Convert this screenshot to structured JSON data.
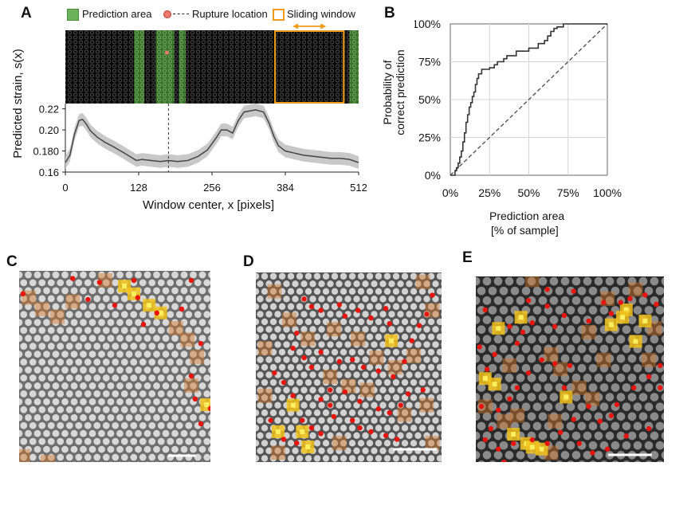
{
  "panels": {
    "a": "A",
    "b": "B",
    "c": "C",
    "d": "D",
    "e": "E"
  },
  "legend": {
    "prediction_area": "Prediction area",
    "rupture_location": "Rupture location",
    "sliding_window": "Sliding window"
  },
  "colors": {
    "prediction_green": "#5ca14a",
    "rupture_red": "#e8564f",
    "window_orange": "#f29a1a",
    "curve": "#444444",
    "band": "#c8c8c8"
  },
  "chart_data": [
    {
      "type": "line",
      "title": "",
      "xlabel": "Window center, x [pixels]",
      "ylabel": "Predicted strain, s(x)",
      "xlim": [
        0,
        512
      ],
      "ylim": [
        0.16,
        0.225
      ],
      "xticks": [
        "0",
        "128",
        "256",
        "384",
        "512"
      ],
      "xtick_values": [
        0,
        128,
        256,
        384,
        512
      ],
      "yticks": [
        "0.16",
        "0.180",
        "0.20",
        "0.22"
      ],
      "ytick_values": [
        0.16,
        0.18,
        0.2,
        0.22
      ],
      "rupture_x": 180,
      "prediction_areas": [
        [
          120,
          138
        ],
        [
          158,
          190
        ],
        [
          198,
          210
        ],
        [
          496,
          512
        ]
      ],
      "sliding_window": [
        366,
        486
      ],
      "series": [
        {
          "name": "mean",
          "x": [
            0,
            8,
            16,
            24,
            30,
            36,
            44,
            56,
            70,
            84,
            100,
            112,
            124,
            134,
            150,
            166,
            180,
            196,
            214,
            232,
            248,
            256,
            264,
            272,
            282,
            292,
            302,
            312,
            322,
            332,
            346,
            356,
            364,
            372,
            384,
            400,
            416,
            432,
            448,
            464,
            480,
            496,
            512
          ],
          "values": [
            0.169,
            0.176,
            0.196,
            0.209,
            0.21,
            0.206,
            0.199,
            0.193,
            0.188,
            0.184,
            0.179,
            0.175,
            0.171,
            0.172,
            0.171,
            0.17,
            0.171,
            0.17,
            0.171,
            0.175,
            0.181,
            0.187,
            0.193,
            0.2,
            0.2,
            0.197,
            0.209,
            0.217,
            0.218,
            0.219,
            0.217,
            0.206,
            0.194,
            0.185,
            0.18,
            0.178,
            0.176,
            0.175,
            0.174,
            0.173,
            0.173,
            0.172,
            0.169
          ],
          "band": 0.006
        }
      ]
    },
    {
      "type": "line",
      "title": "",
      "xlabel": "Prediction area\n[% of sample]",
      "xlabel_lines": [
        "Prediction area",
        "[% of sample]"
      ],
      "ylabel": "Probability of correct prediction",
      "ylabel_lines": [
        "Probability of",
        "correct prediction"
      ],
      "xlim": [
        0,
        100
      ],
      "ylim": [
        0,
        100
      ],
      "xticks": [
        "0%",
        "25%",
        "50%",
        "75%",
        "100%"
      ],
      "xtick_values": [
        0,
        25,
        50,
        75,
        100
      ],
      "yticks": [
        "0%",
        "25%",
        "50%",
        "75%",
        "100%"
      ],
      "ytick_values": [
        0,
        25,
        50,
        75,
        100
      ],
      "series": [
        {
          "name": "model",
          "step": true,
          "x": [
            0,
            3,
            4,
            5,
            6,
            7,
            8,
            9,
            10,
            11,
            12,
            13,
            14,
            15,
            16,
            17,
            18,
            20,
            25,
            28,
            30,
            34,
            36,
            42,
            50,
            56,
            60,
            62,
            64,
            66,
            68,
            72,
            100
          ],
          "values": [
            0,
            3,
            5,
            8,
            12,
            16,
            22,
            28,
            35,
            40,
            45,
            48,
            52,
            55,
            60,
            64,
            67,
            70,
            71,
            73,
            75,
            77,
            79,
            82,
            84,
            87,
            89,
            92,
            95,
            97,
            98,
            100,
            100
          ]
        },
        {
          "name": "random",
          "dashed": true,
          "x": [
            0,
            100
          ],
          "values": [
            0,
            100
          ]
        }
      ]
    }
  ],
  "micrographs": {
    "c": {
      "red_dots": [
        [
          0.02,
          0.12
        ],
        [
          0.28,
          0.04
        ],
        [
          0.42,
          0.06
        ],
        [
          0.36,
          0.15
        ],
        [
          0.5,
          0.18
        ],
        [
          0.62,
          0.14
        ],
        [
          0.72,
          0.22
        ],
        [
          0.85,
          0.2
        ],
        [
          0.9,
          0.05
        ],
        [
          0.95,
          0.38
        ],
        [
          0.9,
          0.55
        ],
        [
          0.92,
          0.67
        ],
        [
          0.95,
          0.8
        ],
        [
          1.0,
          0.72
        ],
        [
          0.6,
          0.05
        ],
        [
          0.65,
          0.28
        ]
      ],
      "yellow": [
        [
          0.6,
          0.12
        ],
        [
          0.68,
          0.18
        ],
        [
          0.74,
          0.22
        ],
        [
          0.98,
          0.7
        ],
        [
          0.55,
          0.08
        ]
      ],
      "orange": [
        [
          0.05,
          0.14
        ],
        [
          0.12,
          0.2
        ],
        [
          0.2,
          0.24
        ],
        [
          0.28,
          0.16
        ],
        [
          0.82,
          0.3
        ],
        [
          0.88,
          0.36
        ],
        [
          0.93,
          0.45
        ],
        [
          0.9,
          0.6
        ],
        [
          0.45,
          0.05
        ],
        [
          0.02,
          0.97
        ],
        [
          0.15,
          1.0
        ]
      ]
    },
    "d": {
      "red_dots": [
        [
          0.26,
          0.14
        ],
        [
          0.3,
          0.18
        ],
        [
          0.35,
          0.2
        ],
        [
          0.45,
          0.17
        ],
        [
          0.48,
          0.23
        ],
        [
          0.55,
          0.2
        ],
        [
          0.62,
          0.24
        ],
        [
          0.7,
          0.19
        ],
        [
          0.72,
          0.27
        ],
        [
          0.22,
          0.32
        ],
        [
          0.2,
          0.4
        ],
        [
          0.26,
          0.45
        ],
        [
          0.3,
          0.5
        ],
        [
          0.35,
          0.42
        ],
        [
          0.45,
          0.47
        ],
        [
          0.52,
          0.46
        ],
        [
          0.58,
          0.5
        ],
        [
          0.66,
          0.52
        ],
        [
          0.74,
          0.55
        ],
        [
          0.8,
          0.47
        ],
        [
          0.84,
          0.36
        ],
        [
          0.88,
          0.28
        ],
        [
          0.92,
          0.22
        ],
        [
          0.1,
          0.53
        ],
        [
          0.15,
          0.58
        ],
        [
          0.2,
          0.65
        ],
        [
          0.35,
          0.67
        ],
        [
          0.4,
          0.62
        ],
        [
          0.48,
          0.63
        ],
        [
          0.56,
          0.68
        ],
        [
          0.66,
          0.72
        ],
        [
          0.72,
          0.74
        ],
        [
          0.78,
          0.7
        ],
        [
          0.82,
          0.64
        ],
        [
          0.9,
          0.62
        ],
        [
          0.95,
          0.12
        ],
        [
          0.08,
          0.78
        ],
        [
          0.25,
          0.78
        ],
        [
          0.3,
          0.82
        ],
        [
          0.35,
          0.85
        ],
        [
          0.4,
          0.7
        ],
        [
          0.42,
          0.76
        ],
        [
          0.52,
          0.78
        ],
        [
          0.56,
          0.82
        ],
        [
          0.62,
          0.84
        ],
        [
          0.7,
          0.86
        ],
        [
          0.76,
          0.88
        ],
        [
          0.15,
          0.88
        ],
        [
          0.22,
          0.9
        ]
      ],
      "yellow": [
        [
          0.2,
          0.7
        ],
        [
          0.12,
          0.84
        ],
        [
          0.25,
          0.84
        ],
        [
          0.73,
          0.36
        ],
        [
          0.28,
          0.92
        ]
      ],
      "orange": [
        [
          0.1,
          0.1
        ],
        [
          0.18,
          0.25
        ],
        [
          0.28,
          0.35
        ],
        [
          0.42,
          0.3
        ],
        [
          0.55,
          0.35
        ],
        [
          0.65,
          0.45
        ],
        [
          0.75,
          0.5
        ],
        [
          0.85,
          0.44
        ],
        [
          0.95,
          0.2
        ],
        [
          0.4,
          0.55
        ],
        [
          0.5,
          0.6
        ],
        [
          0.6,
          0.62
        ],
        [
          0.8,
          0.75
        ],
        [
          0.92,
          0.7
        ],
        [
          0.05,
          0.65
        ],
        [
          0.12,
          0.95
        ],
        [
          0.45,
          0.9
        ],
        [
          0.95,
          0.9
        ],
        [
          0.9,
          0.05
        ],
        [
          0.05,
          0.4
        ]
      ]
    },
    "e": {
      "red_dots": [
        [
          0.02,
          0.38
        ],
        [
          0.06,
          0.5
        ],
        [
          0.1,
          0.42
        ],
        [
          0.18,
          0.27
        ],
        [
          0.25,
          0.3
        ],
        [
          0.3,
          0.25
        ],
        [
          0.28,
          0.13
        ],
        [
          0.38,
          0.16
        ],
        [
          0.42,
          0.27
        ],
        [
          0.47,
          0.21
        ],
        [
          0.52,
          0.08
        ],
        [
          0.6,
          0.24
        ],
        [
          0.68,
          0.14
        ],
        [
          0.72,
          0.2
        ],
        [
          0.77,
          0.14
        ],
        [
          0.82,
          0.12
        ],
        [
          0.9,
          0.1
        ],
        [
          0.96,
          0.15
        ],
        [
          0.98,
          0.48
        ],
        [
          0.92,
          0.54
        ],
        [
          0.84,
          0.6
        ],
        [
          0.75,
          0.69
        ],
        [
          0.72,
          0.75
        ],
        [
          0.6,
          0.7
        ],
        [
          0.52,
          0.77
        ],
        [
          0.47,
          0.6
        ],
        [
          0.42,
          0.47
        ],
        [
          0.35,
          0.45
        ],
        [
          0.28,
          0.52
        ],
        [
          0.22,
          0.6
        ],
        [
          0.18,
          0.66
        ],
        [
          0.12,
          0.72
        ],
        [
          0.08,
          0.82
        ],
        [
          0.05,
          0.88
        ],
        [
          0.12,
          0.93
        ],
        [
          0.2,
          0.9
        ],
        [
          0.3,
          0.88
        ],
        [
          0.38,
          0.9
        ],
        [
          0.45,
          0.84
        ],
        [
          0.55,
          0.9
        ],
        [
          0.62,
          0.95
        ],
        [
          0.7,
          0.93
        ],
        [
          0.8,
          0.86
        ],
        [
          0.92,
          0.82
        ],
        [
          0.98,
          0.6
        ],
        [
          0.15,
          1.0
        ],
        [
          0.03,
          0.7
        ],
        [
          0.38,
          0.07
        ],
        [
          0.05,
          0.18
        ],
        [
          0.22,
          0.36
        ],
        [
          0.5,
          0.48
        ],
        [
          0.66,
          0.78
        ]
      ],
      "yellow": [
        [
          0.8,
          0.18
        ],
        [
          0.78,
          0.22
        ],
        [
          0.72,
          0.26
        ],
        [
          0.85,
          0.35
        ],
        [
          0.1,
          0.58
        ],
        [
          0.2,
          0.85
        ],
        [
          0.27,
          0.9
        ],
        [
          0.3,
          0.92
        ],
        [
          0.35,
          0.93
        ],
        [
          0.48,
          0.65
        ],
        [
          0.9,
          0.24
        ],
        [
          0.24,
          0.22
        ],
        [
          0.12,
          0.28
        ],
        [
          0.05,
          0.55
        ]
      ],
      "orange": [
        [
          0.85,
          0.07
        ],
        [
          0.7,
          0.12
        ],
        [
          0.3,
          0.02
        ],
        [
          0.4,
          0.42
        ],
        [
          0.45,
          0.5
        ],
        [
          0.55,
          0.6
        ],
        [
          0.62,
          0.66
        ],
        [
          0.68,
          0.45
        ],
        [
          0.18,
          0.48
        ],
        [
          0.05,
          0.7
        ],
        [
          0.15,
          0.78
        ],
        [
          0.42,
          0.78
        ],
        [
          0.22,
          0.75
        ],
        [
          0.92,
          0.45
        ],
        [
          0.6,
          0.3
        ],
        [
          0.95,
          0.28
        ],
        [
          0.4,
          0.95
        ]
      ]
    }
  }
}
